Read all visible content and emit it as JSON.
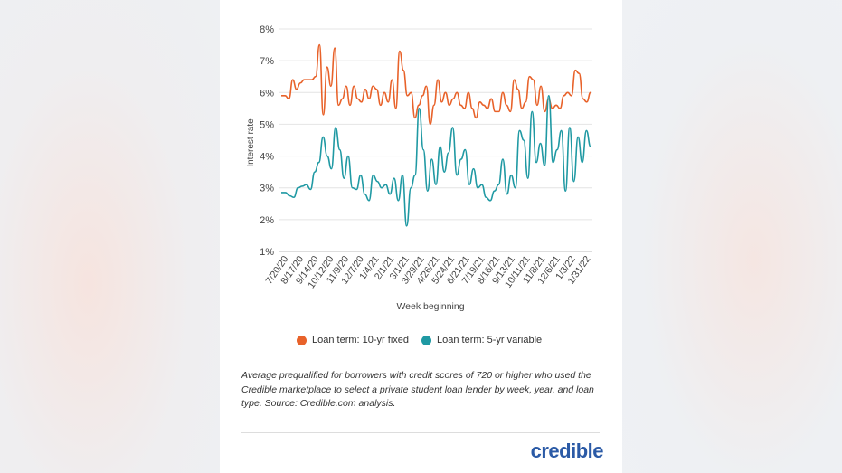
{
  "chart_data": {
    "type": "line",
    "ylabel": "Interest rate",
    "xlabel": "Week beginning",
    "ylim": [
      1,
      8
    ],
    "y_ticks": [
      "1%",
      "2%",
      "3%",
      "4%",
      "5%",
      "6%",
      "7%",
      "8%"
    ],
    "x_ticks": [
      "7/20/20",
      "8/17/20",
      "9/14/20",
      "10/12/20",
      "11/9/20",
      "12/7/20",
      "1/4/21",
      "2/1/21",
      "3/1/21",
      "3/29/21",
      "4/26/21",
      "5/24/21",
      "6/21/21",
      "7/19/21",
      "8/16/21",
      "9/13/21",
      "10/11/21",
      "11/8/21",
      "12/6/21",
      "1/3/22",
      "1/31/22"
    ],
    "series": [
      {
        "name": "Loan term: 10-yr fixed",
        "color": "#e8622a",
        "values": [
          5.9,
          5.9,
          5.8,
          6.4,
          6.1,
          6.3,
          6.4,
          6.4,
          6.4,
          6.5,
          7.5,
          5.3,
          6.8,
          6.2,
          7.4,
          5.6,
          5.8,
          6.2,
          5.6,
          6.2,
          5.8,
          5.7,
          6.1,
          5.8,
          6.2,
          6.1,
          5.6,
          6.0,
          5.7,
          6.4,
          5.5,
          7.3,
          6.7,
          5.9,
          6.0,
          5.2,
          5.6,
          5.9,
          6.2,
          5.0,
          5.6,
          6.4,
          5.7,
          6.0,
          5.6,
          5.8,
          6.0,
          5.6,
          5.5,
          6.0,
          5.5,
          5.2,
          5.7,
          5.6,
          5.5,
          5.8,
          5.4,
          5.4,
          6.0,
          5.6,
          5.4,
          6.4,
          6.1,
          5.5,
          5.7,
          6.5,
          6.4,
          5.6,
          6.2,
          5.4,
          5.8,
          5.5,
          5.6,
          5.5,
          5.9,
          6.0,
          5.9,
          6.7,
          6.6,
          5.8,
          5.7
        ],
        "values_tail": [
          6.0
        ]
      },
      {
        "name": "Loan term: 5-yr variable",
        "color": "#1f99a3",
        "values": [
          2.85,
          2.85,
          2.75,
          2.7,
          3.0,
          3.05,
          3.1,
          2.95,
          3.5,
          3.8,
          4.6,
          4.0,
          3.6,
          4.9,
          4.2,
          3.3,
          4.0,
          3.0,
          2.95,
          3.4,
          2.8,
          2.6,
          3.4,
          3.2,
          3.0,
          3.1,
          2.8,
          3.3,
          2.6,
          3.4,
          1.8,
          3.0,
          3.4,
          5.5,
          4.2,
          2.9,
          3.9,
          3.1,
          4.3,
          3.5,
          4.1,
          4.9,
          3.4,
          3.9,
          4.2,
          3.1,
          3.6,
          3.0,
          3.1,
          2.7,
          2.6,
          2.9,
          3.1,
          3.9,
          2.8,
          3.4,
          3.0,
          4.8,
          4.5,
          3.3,
          5.4,
          3.8,
          4.4,
          3.7,
          5.9,
          3.8,
          4.2,
          4.8,
          2.9,
          4.9,
          3.2,
          4.6,
          3.8,
          4.8,
          4.3
        ]
      }
    ],
    "legend": "bottom",
    "grid": true
  },
  "caption": "Average prequalified for borrowers with credit scores of 720 or higher who used the Credible marketplace to select a private student loan lender by week, year, and loan type. Source: Credible.com analysis.",
  "logo_text": "credible"
}
